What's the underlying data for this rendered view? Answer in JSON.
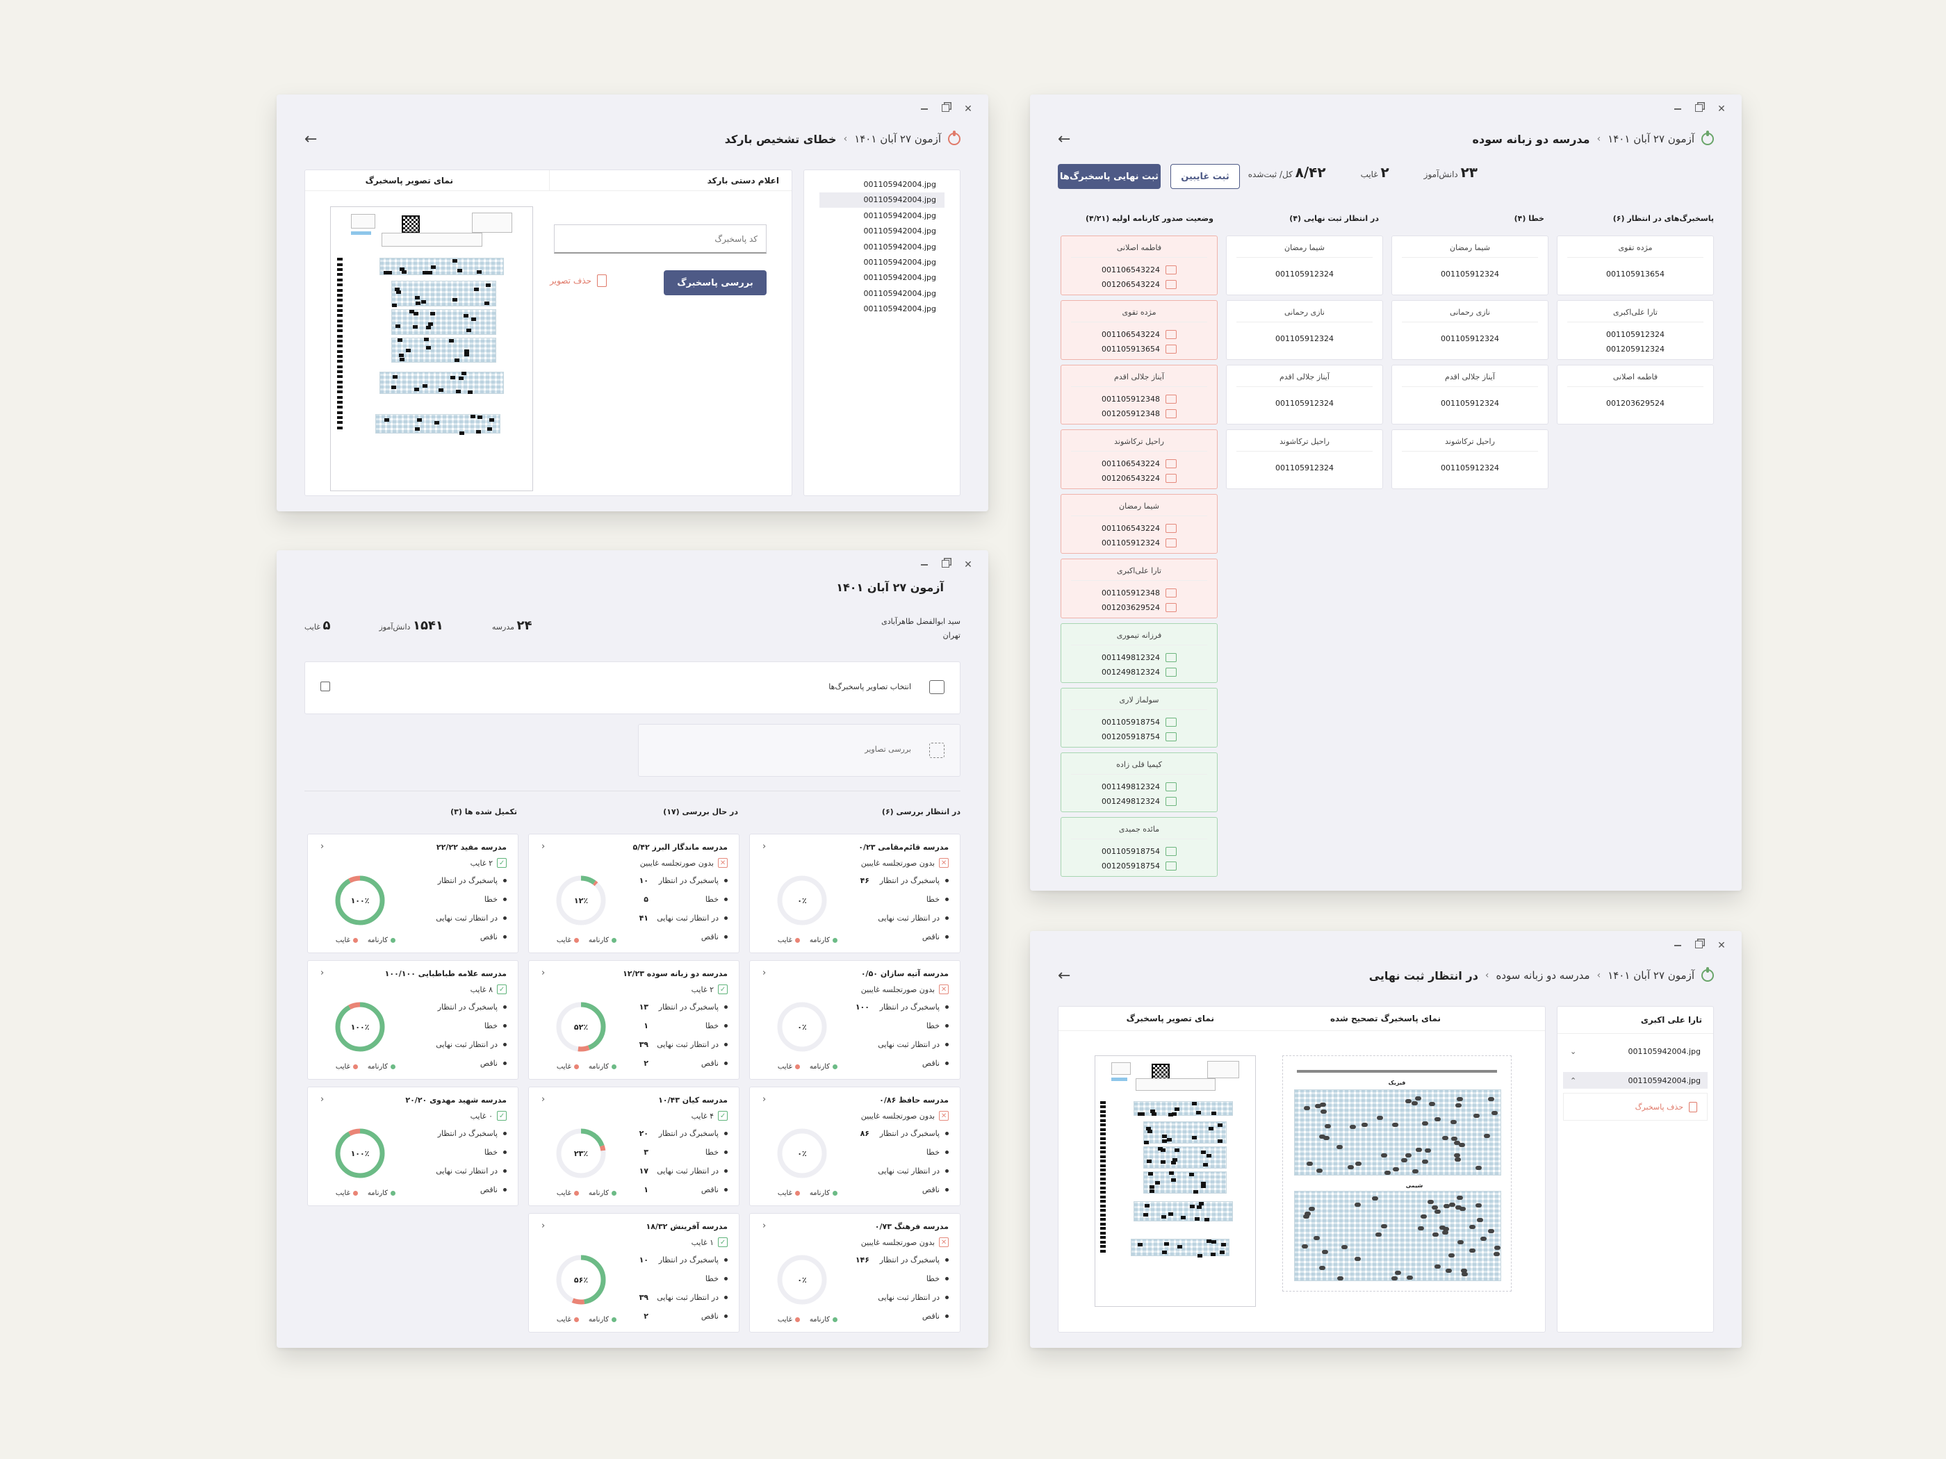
{
  "w1": {
    "title": "خطای تشخیص بارکد",
    "exam": "آزمون ۲۷ آبان ۱۴۰۱",
    "files": [
      "001105942004.jpg",
      "001105942004.jpg",
      "001105942004.jpg",
      "001105942004.jpg",
      "001105942004.jpg",
      "001105942004.jpg",
      "001105942004.jpg",
      "001105942004.jpg",
      "001105942004.jpg"
    ],
    "manual_label": "اعلام دستی بارکد",
    "image_view_label": "نمای تصویر پاسخبرگ",
    "code_placeholder": "کد پاسخبرگ",
    "check_button": "بررسی پاسخبرگ",
    "delete_button": "حذف تصویر"
  },
  "w2": {
    "school": "مدرسه دو زبانه سوده",
    "exam": "آزمون ۲۷ آبان ۱۴۰۱",
    "stats": {
      "students": "۲۳",
      "students_label": "دانش‌آموز",
      "absent": "۲",
      "absent_label": "غایب",
      "ratio": "۸/۴۲",
      "ratio_label": "کل/ ثبت‌شده"
    },
    "absent_button": "ثبت غایبین",
    "final_button": "ثبت نهایی پاسخبرگ‌ها",
    "col_pending": "پاسخبرگ‌های در انتظار (۶)",
    "col_error": "خطا (۴)",
    "col_await": "در انتظار ثبت نهایی (۴)",
    "col_report": "وضعیت صدور کارنامه اولیه (۴/۲۱)",
    "pending": [
      {
        "name": "مژده تقوی",
        "codes": [
          "001105913654"
        ]
      },
      {
        "name": "تارا علی‌اکبری",
        "codes": [
          "001105912324",
          "001205912324"
        ]
      },
      {
        "name": "فاطمه اصلانی",
        "codes": [
          "001203629524"
        ]
      }
    ],
    "errors": [
      {
        "name": "شیما رمضان",
        "codes": [
          "001105912324"
        ]
      },
      {
        "name": "نازی رحمانی",
        "codes": [
          "001105912324"
        ]
      },
      {
        "name": "آیناز جلالی اقدم",
        "codes": [
          "001105912324"
        ]
      },
      {
        "name": "راحیل ترکاشوند",
        "codes": [
          "001105912324"
        ]
      }
    ],
    "awaiting": [
      {
        "name": "شیما رمضان",
        "codes": [
          "001105912324"
        ]
      },
      {
        "name": "نازی رحمانی",
        "codes": [
          "001105912324"
        ]
      },
      {
        "name": "آیناز جلالی اقدم",
        "codes": [
          "001105912324"
        ]
      },
      {
        "name": "راحیل ترکاشوند",
        "codes": [
          "001105912324"
        ]
      }
    ],
    "reports": [
      {
        "name": "فاطمه اصلانی",
        "codes": [
          "001106543224",
          "001206543224"
        ],
        "state": "red"
      },
      {
        "name": "مژده تقوی",
        "codes": [
          "001106543224",
          "001105913654"
        ],
        "state": "red"
      },
      {
        "name": "آیناز جلالی اقدم",
        "codes": [
          "001105912348",
          "001205912348"
        ],
        "state": "red"
      },
      {
        "name": "راحیل ترکاشوند",
        "codes": [
          "001106543224",
          "001206543224"
        ],
        "state": "red"
      },
      {
        "name": "شیما رمضان",
        "codes": [
          "001106543224",
          "001105912324"
        ],
        "state": "red"
      },
      {
        "name": "تارا علی‌اکبری",
        "codes": [
          "001105912348",
          "001203629524"
        ],
        "state": "red"
      },
      {
        "name": "فرزانه تیموری",
        "codes": [
          "001149812324",
          "001249812324"
        ],
        "state": "green"
      },
      {
        "name": "سولماز لاری",
        "codes": [
          "001105918754",
          "001205918754"
        ],
        "state": "green"
      },
      {
        "name": "کیمیا قلی زاده",
        "codes": [
          "001149812324",
          "001249812324"
        ],
        "state": "green"
      },
      {
        "name": "مائده جمیدی",
        "codes": [
          "001105918754",
          "001205918754"
        ],
        "state": "green"
      }
    ]
  },
  "w3": {
    "exam": "آزمون ۲۷ آبان ۱۴۰۱",
    "person": "سید ابوالفضل طاهرآبادی",
    "city": "تهران",
    "stats": {
      "schools": "۲۴",
      "schools_label": "مدرسه",
      "students": "۱۵۴۱",
      "students_label": "دانش‌آموز",
      "absent": "۵",
      "absent_label": "غایب"
    },
    "select_images": "انتخاب تصاویر پاسخبرگ‌ها",
    "review_images": "بررسی تصاویر",
    "col_waiting": "در انتظار بررسی (۶)",
    "col_reviewing": "در حال بررسی (۱۷)",
    "col_done": "تکمیل شده ها (۳)",
    "labels": {
      "pending": "پاسخبرگ در انتظار",
      "error": "خطا",
      "await": "در انتظار ثبت نهایی",
      "incomplete": "ناقص",
      "report": "کارنامه",
      "absent": "غایب",
      "no_minutes": "بدون صورتجلسه غایبین"
    },
    "col1": [
      {
        "name": "مدرسه قائم‌مقامی ۰/۲۳",
        "status": "بدون صورتجلسه غایبین",
        "ok": false,
        "pct": "۰٪",
        "p": 0,
        "vals": [
          "۴۶",
          "",
          "",
          ""
        ]
      },
      {
        "name": "مدرسه آتیه سازان ۰/۵۰",
        "status": "بدون صورتجلسه غایبین",
        "ok": false,
        "pct": "۰٪",
        "p": 0,
        "vals": [
          "۱۰۰",
          "",
          "",
          ""
        ]
      },
      {
        "name": "مدرسه حافظ ۰/۸۶",
        "status": "بدون صورتجلسه غایبین",
        "ok": false,
        "pct": "۰٪",
        "p": 0,
        "vals": [
          "۸۶",
          "",
          "",
          ""
        ]
      },
      {
        "name": "مدرسه فرهنگ ۰/۷۳",
        "status": "بدون صورتجلسه غایبین",
        "ok": false,
        "pct": "۰٪",
        "p": 0,
        "vals": [
          "۱۴۶",
          "",
          "",
          ""
        ]
      }
    ],
    "col2": [
      {
        "name": "مدرسه ماندگار البرز ۵/۴۲",
        "status": "بدون صورتجلسه غایبین",
        "ok": false,
        "pct": "۱۲٪",
        "p": 12,
        "vals": [
          "۱۰",
          "۵",
          "۴۱",
          ""
        ]
      },
      {
        "name": "مدرسه دو زبانه سوده ۱۲/۲۳",
        "status": "۲ غایب",
        "ok": true,
        "pct": "۵۲٪",
        "p": 52,
        "vals": [
          "۱۳",
          "۱",
          "۳۹",
          "۲"
        ]
      },
      {
        "name": "مدرسه کیان ۱۰/۴۳",
        "status": "۴ غایب",
        "ok": true,
        "pct": "۲۳٪",
        "p": 23,
        "vals": [
          "۲۰",
          "۳",
          "۱۷",
          "۱"
        ]
      },
      {
        "name": "مدرسه آفرینش ۱۸/۳۲",
        "status": "۱ غایب",
        "ok": true,
        "pct": "۵۶٪",
        "p": 56,
        "vals": [
          "۱۰",
          "",
          "۳۹",
          "۲"
        ]
      }
    ],
    "col3": [
      {
        "name": "مدرسه مفید ۲۲/۲۲",
        "status": "۲ غایب",
        "ok": true,
        "pct": "۱۰۰٪",
        "p": 100,
        "vals": [
          "",
          "",
          "",
          ""
        ]
      },
      {
        "name": "مدرسه علامه طباطبایی ۱۰۰/۱۰۰",
        "status": "۸ غایب",
        "ok": true,
        "pct": "۱۰۰٪",
        "p": 100,
        "vals": [
          "",
          "",
          "",
          ""
        ]
      },
      {
        "name": "مدرسه شهید مهدوی ۲۰/۲۰",
        "status": "۰ غایب",
        "ok": true,
        "pct": "۱۰۰٪",
        "p": 100,
        "vals": [
          "",
          "",
          "",
          ""
        ]
      }
    ]
  },
  "w4": {
    "exam": "آزمون ۲۷ آبان ۱۴۰۱",
    "school": "مدرسه دو زبانه سوده",
    "title": "در انتظار ثبت نهایی",
    "student": "تارا علی اکبری",
    "files": [
      "001105942004.jpg",
      "001105942004.jpg"
    ],
    "delete": "حذف پاسخبرگ",
    "corrected_view": "نمای پاسخبرگ تصحیح شده",
    "image_view": "نمای تصویر پاسخبرگ",
    "sec_physics": "فیزیک",
    "sec_chem": "شیمی"
  }
}
